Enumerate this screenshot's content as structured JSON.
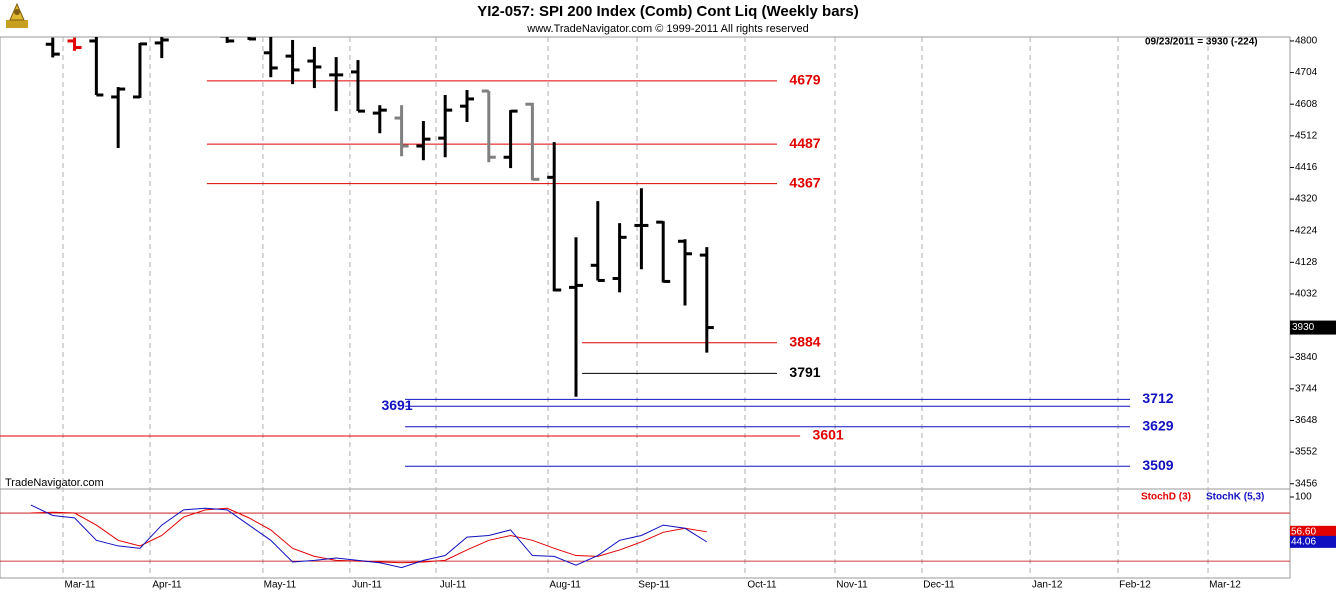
{
  "chart_data": [
    {
      "type": "ohlc",
      "title": "YI2-057:  SPI 200 Index (Comb) Cont Liq  (Weekly bars)",
      "subtitle": "www.TradeNavigator.com © 1999-2011 All rights reserved",
      "watermark": "TradeNavigator.com",
      "info": "09/23/2011 = 3930 (-224)",
      "categories": [
        null,
        null,
        null,
        null,
        null,
        null,
        null,
        null,
        null,
        null,
        null,
        null,
        null,
        null,
        null,
        null,
        null,
        null,
        null,
        null,
        null,
        null,
        null,
        null,
        null,
        null,
        null,
        null,
        null,
        null,
        null,
        null
      ],
      "open": [
        null,
        4790,
        4800,
        4800,
        4630,
        4630,
        4794,
        null,
        null,
        4815,
        4820,
        4764,
        4754,
        4739,
        4697,
        4706,
        4581,
        4566,
        4481,
        4505,
        4602,
        4648,
        4447,
        4608,
        4386,
        4052,
        4119,
        4079,
        4240,
        4250,
        4192,
        4150
      ],
      "high": [
        null,
        4810,
        4810,
        4815,
        4660,
        4794,
        4812,
        null,
        null,
        4830,
        4830,
        4815,
        4803,
        4782,
        4751,
        4742,
        4605,
        4605,
        4557,
        4636,
        4651,
        4648,
        4590,
        4612,
        4493,
        4204,
        4314,
        4247,
        4353,
        4253,
        4198,
        4174
      ],
      "low": [
        null,
        4750,
        4770,
        4636,
        4475,
        4627,
        4748,
        null,
        null,
        4794,
        4803,
        4690,
        4669,
        4657,
        4587,
        4587,
        4520,
        4450,
        4438,
        4447,
        4554,
        4432,
        4414,
        4377,
        4040,
        3720,
        4073,
        4037,
        4107,
        4067,
        3997,
        3854
      ],
      "close": [
        null,
        4760,
        4780,
        4636,
        4654,
        4791,
        4803,
        null,
        null,
        4800,
        4806,
        4718,
        4712,
        4721,
        4697,
        4587,
        4590,
        4481,
        4502,
        4590,
        4624,
        4447,
        4587,
        4380,
        4044,
        4058,
        4073,
        4204,
        4240,
        4070,
        4154,
        3930
      ],
      "colors": [
        null,
        "#000000",
        "#e00000",
        "#000000",
        "#000000",
        "#000000",
        "#000000",
        null,
        null,
        "#000000",
        "#000000",
        "#000000",
        "#000000",
        "#000000",
        "#000000",
        "#000000",
        "#000000",
        "#808080",
        "#000000",
        "#000000",
        "#000000",
        "#808080",
        "#000000",
        "#808080",
        "#000000",
        "#000000",
        "#000000",
        "#000000",
        "#000000",
        "#000000",
        "#000000",
        "#000000"
      ],
      "xlim": [
        -1.42,
        57.75
      ],
      "xticks": [
        {
          "value": 1.47,
          "label": "Mar-11"
        },
        {
          "value": 5.46,
          "label": "Apr-11"
        },
        {
          "value": 10.64,
          "label": "May-11"
        },
        {
          "value": 14.63,
          "label": "Jun-11"
        },
        {
          "value": 18.58,
          "label": "Jul-11"
        },
        {
          "value": 23.72,
          "label": "Aug-11"
        },
        {
          "value": 27.8,
          "label": "Sep-11"
        },
        {
          "value": 32.75,
          "label": "Oct-11"
        },
        {
          "value": 36.88,
          "label": "Nov-11"
        },
        {
          "value": 40.87,
          "label": "Dec-11"
        },
        {
          "value": 45.83,
          "label": "Jan-12"
        },
        {
          "value": 49.86,
          "label": "Feb-12"
        },
        {
          "value": 53.99,
          "label": "Mar-12"
        }
      ],
      "ylim": [
        3440,
        4812
      ],
      "yticks": [
        4800,
        4704,
        4608,
        4512,
        4416,
        4320,
        4224,
        4128,
        4032,
        3936,
        3840,
        3744,
        3648,
        3552,
        3456
      ],
      "levels": [
        {
          "value": 4679,
          "color": "#e00000",
          "from": 8.07,
          "to": 34.22
        },
        {
          "value": 4487,
          "color": "#e00000",
          "from": 8.07,
          "to": 34.22
        },
        {
          "value": 4367,
          "color": "#e00000",
          "from": 8.07,
          "to": 34.22
        },
        {
          "value": 3884,
          "color": "#e00000",
          "from": 25.28,
          "to": 34.22
        },
        {
          "value": 3791,
          "color": "#000000",
          "from": 25.28,
          "to": 34.22
        },
        {
          "value": 3712,
          "color": "#1010c0",
          "from": 17.16,
          "to": 50.41
        },
        {
          "value": 3691,
          "color": "#1010c0",
          "from": 17.16,
          "to": 50.41,
          "label_side": "left"
        },
        {
          "value": 3629,
          "color": "#1010c0",
          "from": 17.16,
          "to": 50.41
        },
        {
          "value": 3601,
          "color": "#e00000",
          "from": -1.42,
          "to": 35.28
        },
        {
          "value": 3509,
          "color": "#1010c0",
          "from": 17.16,
          "to": 50.41
        }
      ],
      "grid": true
    },
    {
      "type": "line",
      "ylim": [
        -1,
        110
      ],
      "yticks": [
        100
      ],
      "levels": [
        80,
        20
      ],
      "series": [
        {
          "name": "StochD (3)",
          "color": "#e00000",
          "last_label": "56.60",
          "values": [
            80,
            81,
            80,
            65,
            46,
            39,
            52,
            75,
            84,
            86,
            74,
            59,
            36,
            26,
            21,
            20,
            19,
            18,
            19,
            21,
            34,
            46,
            52,
            46,
            36,
            27,
            26,
            34,
            44,
            56,
            61,
            56.6
          ]
        },
        {
          "name": "StochK (5,3)",
          "color": "#1010c0",
          "last_label": "44.06",
          "values": [
            90,
            77,
            74,
            46,
            39,
            36,
            65,
            84,
            86,
            84,
            65,
            46,
            19,
            21,
            24,
            21,
            18,
            12,
            21,
            27,
            50,
            52,
            59,
            27,
            26,
            15,
            27,
            46,
            52,
            65,
            61,
            44.06
          ]
        }
      ]
    }
  ]
}
